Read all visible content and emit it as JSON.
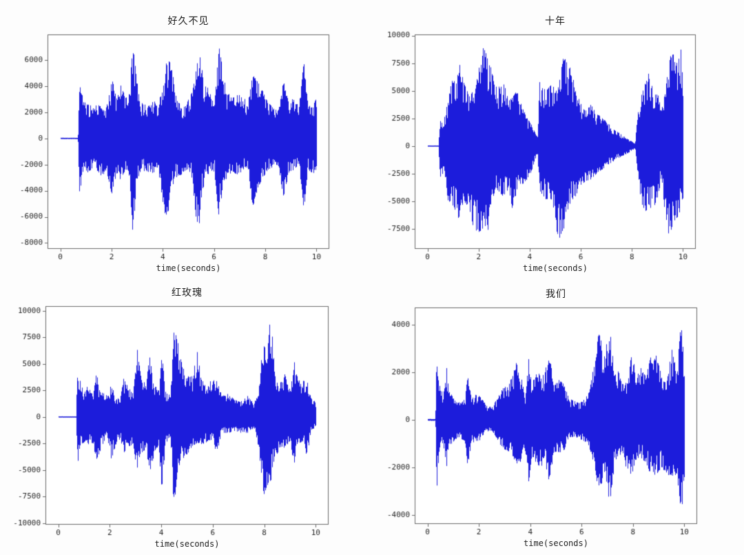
{
  "figure": {
    "background": "#fdfdfd",
    "plot_background": "#ffffff",
    "axis_color": "#6a6a6a",
    "tick_text_color": "#262626",
    "title_color": "#1b1b1b"
  },
  "chart_data": [
    {
      "type": "area",
      "title": "好久不见",
      "xlabel": "time(seconds)",
      "x_ticks": [
        0,
        2,
        4,
        6,
        8,
        10
      ],
      "y_ticks": [
        6000,
        4000,
        2000,
        0,
        -2000,
        -4000,
        -6000,
        -8000
      ],
      "xlim": [
        -0.5,
        10.5
      ],
      "ylim": [
        -8450,
        7950
      ],
      "line_color": "#1c1cdb",
      "grid": false,
      "series_name": "waveform-amplitude",
      "envelope_t": [
        0,
        0.68,
        0.74,
        0.8,
        0.9,
        1.0,
        1.15,
        1.3,
        1.45,
        1.6,
        1.8,
        2.0,
        2.05,
        2.2,
        2.35,
        2.5,
        2.65,
        2.82,
        2.95,
        3.1,
        3.3,
        3.5,
        3.65,
        3.8,
        4.0,
        4.15,
        4.3,
        4.5,
        4.7,
        4.9,
        5.1,
        5.25,
        5.38,
        5.5,
        5.65,
        5.8,
        6.0,
        6.18,
        6.35,
        6.5,
        6.7,
        6.9,
        7.1,
        7.3,
        7.5,
        7.7,
        7.9,
        8.1,
        8.3,
        8.5,
        8.7,
        8.9,
        9.1,
        9.3,
        9.5,
        9.65,
        9.8,
        10.0
      ],
      "envelope_upper": [
        50,
        50,
        4700,
        3600,
        3000,
        2600,
        2600,
        2300,
        2700,
        2400,
        2500,
        4400,
        4300,
        3000,
        4100,
        3400,
        2800,
        7100,
        5000,
        2700,
        2700,
        2500,
        3100,
        2200,
        4500,
        6000,
        5800,
        3500,
        2300,
        2500,
        3600,
        4500,
        7000,
        5500,
        4000,
        3800,
        2400,
        7100,
        5000,
        3300,
        3600,
        3300,
        3500,
        2500,
        4900,
        4300,
        3600,
        2800,
        2300,
        2100,
        4400,
        2800,
        3100,
        2400,
        5900,
        2700,
        2400,
        3100
      ],
      "envelope_lower": [
        -50,
        -50,
        -4400,
        -3500,
        -2900,
        -2800,
        -2500,
        -2400,
        -2500,
        -2900,
        -2500,
        -4500,
        -3800,
        -2600,
        -3300,
        -2500,
        -2800,
        -7300,
        -4000,
        -2600,
        -2500,
        -2600,
        -2700,
        -2200,
        -5000,
        -6500,
        -4000,
        -3000,
        -2800,
        -2400,
        -2700,
        -5500,
        -7600,
        -4500,
        -3000,
        -2800,
        -2500,
        -6100,
        -3500,
        -3000,
        -2500,
        -2800,
        -2500,
        -2200,
        -5300,
        -3800,
        -3000,
        -2400,
        -2200,
        -2000,
        -4600,
        -2700,
        -2400,
        -2000,
        -5500,
        -2400,
        -2600,
        -2700
      ]
    },
    {
      "type": "area",
      "title": "十年",
      "xlabel": "time(seconds)",
      "x_ticks": [
        0,
        2,
        4,
        6,
        8,
        10
      ],
      "y_ticks": [
        10000,
        7500,
        5000,
        2500,
        0,
        -2500,
        -5000,
        -7500
      ],
      "xlim": [
        -0.5,
        10.5
      ],
      "ylim": [
        -9300,
        10100
      ],
      "line_color": "#1c1cdb",
      "grid": false,
      "series_name": "waveform-amplitude",
      "envelope_t": [
        0,
        0.42,
        0.5,
        0.62,
        0.8,
        1.0,
        1.1,
        1.25,
        1.4,
        1.6,
        1.8,
        1.95,
        2.1,
        2.2,
        2.35,
        2.5,
        2.65,
        2.8,
        3.0,
        3.15,
        3.3,
        3.5,
        3.7,
        3.9,
        4.1,
        4.22,
        4.3,
        4.38,
        4.5,
        4.7,
        4.9,
        5.05,
        5.2,
        5.32,
        5.45,
        5.6,
        5.8,
        6.0,
        6.2,
        6.4,
        6.6,
        6.8,
        7.0,
        7.2,
        7.4,
        7.6,
        7.8,
        8.0,
        8.12,
        8.22,
        8.35,
        8.5,
        8.65,
        8.8,
        9.0,
        9.15,
        9.3,
        9.45,
        9.6,
        9.75,
        9.9,
        10.0
      ],
      "envelope_upper": [
        50,
        50,
        2600,
        2200,
        4300,
        6500,
        5500,
        7500,
        5800,
        4800,
        4900,
        6300,
        8800,
        9200,
        7800,
        7000,
        5400,
        5400,
        5600,
        4200,
        4500,
        5000,
        3500,
        2500,
        1800,
        1100,
        900,
        5800,
        5300,
        5200,
        5800,
        5000,
        6500,
        8400,
        7500,
        7000,
        5000,
        3800,
        3300,
        3800,
        3000,
        2600,
        2200,
        1800,
        1400,
        1000,
        700,
        400,
        200,
        3200,
        4700,
        5600,
        6700,
        5600,
        4800,
        3300,
        5000,
        8300,
        8600,
        7500,
        9000,
        5200
      ],
      "envelope_lower": [
        -50,
        -50,
        -3300,
        -2200,
        -5000,
        -5500,
        -6000,
        -7300,
        -5000,
        -5500,
        -7500,
        -7800,
        -8100,
        -7000,
        -7800,
        -5000,
        -4000,
        -4500,
        -4500,
        -4000,
        -5600,
        -4000,
        -3500,
        -3000,
        -2200,
        -1100,
        -900,
        -4000,
        -4500,
        -5000,
        -5300,
        -8000,
        -8600,
        -7500,
        -6000,
        -5000,
        -4500,
        -3500,
        -3200,
        -3000,
        -2500,
        -2200,
        -1800,
        -1500,
        -1200,
        -900,
        -700,
        -400,
        -200,
        -2500,
        -5000,
        -6000,
        -5500,
        -5800,
        -5000,
        -2800,
        -6500,
        -8300,
        -7000,
        -6500,
        -6000,
        -6300
      ]
    },
    {
      "type": "area",
      "title": "红玫瑰",
      "xlabel": "time(seconds)",
      "x_ticks": [
        0,
        2,
        4,
        6,
        8,
        10
      ],
      "y_ticks": [
        10000,
        7500,
        5000,
        2500,
        0,
        -2500,
        -5000,
        -7500,
        -10000
      ],
      "xlim": [
        -0.5,
        10.5
      ],
      "ylim": [
        -10150,
        10450
      ],
      "line_color": "#1c1cdb",
      "grid": false,
      "series_name": "waveform-amplitude",
      "envelope_t": [
        0,
        0.68,
        0.73,
        0.85,
        1.0,
        1.08,
        1.2,
        1.35,
        1.48,
        1.55,
        1.7,
        1.9,
        2.05,
        2.2,
        2.4,
        2.52,
        2.7,
        2.9,
        3.05,
        3.2,
        3.4,
        3.52,
        3.7,
        3.9,
        4.0,
        4.15,
        4.35,
        4.48,
        4.62,
        4.8,
        5.0,
        5.2,
        5.38,
        5.55,
        5.75,
        5.95,
        6.15,
        6.35,
        6.6,
        6.85,
        7.1,
        7.35,
        7.6,
        7.8,
        7.95,
        8.1,
        8.25,
        8.4,
        8.6,
        8.8,
        9.0,
        9.15,
        9.3,
        9.5,
        9.65,
        9.8,
        10.0
      ],
      "envelope_upper": [
        50,
        50,
        4400,
        3300,
        2200,
        3100,
        2600,
        2000,
        4600,
        2600,
        2300,
        2000,
        3100,
        2000,
        1700,
        3700,
        2900,
        2200,
        6500,
        3800,
        3000,
        5900,
        3400,
        2500,
        6400,
        2400,
        2000,
        8800,
        7300,
        4800,
        4100,
        3800,
        6300,
        3500,
        3000,
        3500,
        3400,
        2000,
        2200,
        1600,
        1500,
        2000,
        1200,
        3100,
        7800,
        7200,
        9500,
        4300,
        3400,
        4100,
        2500,
        5300,
        3500,
        3400,
        3500,
        2200,
        1200
      ],
      "envelope_lower": [
        -50,
        -50,
        -4600,
        -2800,
        -2400,
        -2900,
        -2400,
        -2600,
        -4400,
        -3600,
        -2700,
        -2000,
        -4000,
        -2800,
        -2000,
        -3400,
        -2900,
        -2500,
        -5400,
        -3500,
        -3000,
        -5400,
        -3700,
        -2600,
        -7400,
        -2600,
        -1800,
        -9200,
        -5000,
        -4000,
        -3500,
        -2800,
        -2500,
        -2600,
        -2400,
        -2200,
        -3400,
        -1500,
        -1500,
        -1300,
        -1500,
        -1500,
        -1000,
        -3500,
        -7500,
        -6500,
        -6000,
        -3600,
        -3300,
        -2800,
        -2300,
        -4800,
        -2500,
        -2300,
        -3800,
        -1500,
        -800
      ]
    },
    {
      "type": "area",
      "title": "我们",
      "xlabel": "time(seconds)",
      "x_ticks": [
        0,
        2,
        4,
        6,
        8,
        10
      ],
      "y_ticks": [
        4000,
        2000,
        0,
        -2000,
        -4000
      ],
      "xlim": [
        -0.5,
        10.5
      ],
      "ylim": [
        -4380,
        4730
      ],
      "line_color": "#1c1cdb",
      "grid": false,
      "series_name": "waveform-amplitude",
      "envelope_t": [
        0,
        0.3,
        0.34,
        0.45,
        0.6,
        0.73,
        0.8,
        0.95,
        1.1,
        1.3,
        1.45,
        1.55,
        1.7,
        1.9,
        2.1,
        2.3,
        2.5,
        2.7,
        2.9,
        3.1,
        3.3,
        3.45,
        3.6,
        3.8,
        3.93,
        4.05,
        4.2,
        4.4,
        4.55,
        4.72,
        4.9,
        5.1,
        5.3,
        5.5,
        5.7,
        5.9,
        6.1,
        6.3,
        6.5,
        6.68,
        6.85,
        7.08,
        7.25,
        7.4,
        7.6,
        7.8,
        7.95,
        8.1,
        8.3,
        8.5,
        8.7,
        8.9,
        9.1,
        9.3,
        9.5,
        9.7,
        9.88,
        10.0
      ],
      "envelope_upper": [
        40,
        40,
        3100,
        1500,
        1100,
        2300,
        1400,
        1000,
        800,
        700,
        900,
        1850,
        900,
        1100,
        900,
        600,
        550,
        900,
        1300,
        1500,
        1800,
        2600,
        2100,
        900,
        2650,
        1500,
        2100,
        1900,
        1900,
        3000,
        1400,
        1700,
        1500,
        900,
        800,
        700,
        900,
        1200,
        2600,
        3850,
        2500,
        3950,
        2200,
        2100,
        1500,
        1600,
        3000,
        1800,
        2200,
        1800,
        2800,
        2700,
        1900,
        1500,
        3000,
        2000,
        4350,
        2000
      ],
      "envelope_lower": [
        -40,
        -40,
        -3200,
        -1200,
        -1000,
        -2000,
        -1100,
        -1000,
        -800,
        -800,
        -900,
        -2050,
        -900,
        -1100,
        -700,
        -500,
        -450,
        -800,
        -1200,
        -1300,
        -1500,
        -1900,
        -1800,
        -1300,
        -2650,
        -1500,
        -1800,
        -2000,
        -1700,
        -2600,
        -1500,
        -1400,
        -1300,
        -800,
        -700,
        -800,
        -900,
        -1300,
        -2000,
        -3500,
        -2000,
        -3550,
        -2100,
        -1600,
        -1500,
        -2400,
        -2300,
        -1700,
        -1600,
        -1800,
        -2400,
        -2300,
        -2000,
        -2300,
        -2400,
        -2300,
        -4000,
        -2300
      ]
    }
  ]
}
